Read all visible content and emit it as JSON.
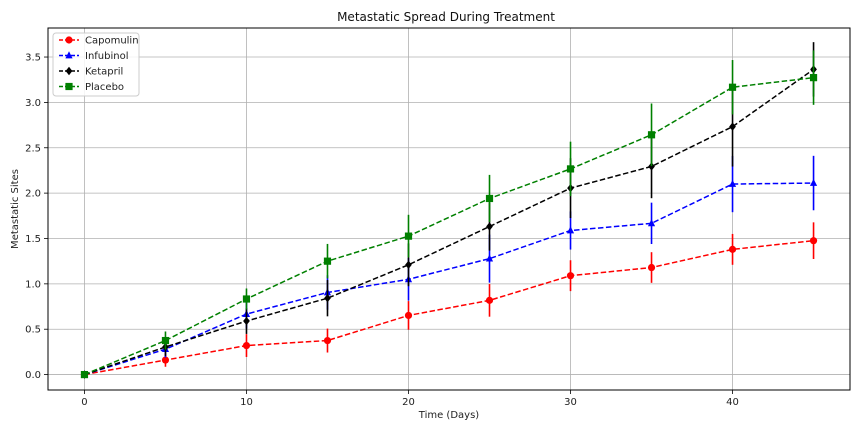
{
  "chart_data": {
    "type": "line",
    "title": "Metastatic Spread During Treatment",
    "xlabel": "Time (Days)",
    "ylabel": "Metastatic Sites",
    "x": [
      0,
      5,
      10,
      15,
      20,
      25,
      30,
      35,
      40,
      45
    ],
    "xlim": [
      -2.25,
      47.25
    ],
    "ylim": [
      -0.17,
      3.82
    ],
    "xticks": [
      0,
      10,
      20,
      30,
      40
    ],
    "yticks": [
      0.0,
      0.5,
      1.0,
      1.5,
      2.0,
      2.5,
      3.0,
      3.5
    ],
    "ytick_labels": [
      "0.0",
      "0.5",
      "1.0",
      "1.5",
      "2.0",
      "2.5",
      "3.0",
      "3.5"
    ],
    "grid": true,
    "legend_position": "top-left",
    "series": [
      {
        "name": "Capomulin",
        "color": "#ff0000",
        "marker": "circle",
        "linestyle": "dashed",
        "values": [
          0.0,
          0.16,
          0.32,
          0.375,
          0.652,
          0.818,
          1.09,
          1.18,
          1.38,
          1.476
        ],
        "errors": [
          0.0,
          0.074,
          0.126,
          0.132,
          0.158,
          0.18,
          0.17,
          0.169,
          0.17,
          0.202
        ]
      },
      {
        "name": "Infubinol",
        "color": "#0000ff",
        "marker": "triangle",
        "linestyle": "dashed",
        "values": [
          0.0,
          0.28,
          0.667,
          0.905,
          1.05,
          1.278,
          1.588,
          1.667,
          2.1,
          2.111
        ],
        "errors": [
          0.0,
          0.092,
          0.16,
          0.19,
          0.235,
          0.265,
          0.21,
          0.228,
          0.31,
          0.3
        ]
      },
      {
        "name": "Ketapril",
        "color": "#000000",
        "marker": "diamond",
        "linestyle": "dashed",
        "values": [
          0.0,
          0.304,
          0.59,
          0.842,
          1.21,
          1.632,
          2.055,
          2.294,
          2.733,
          3.364
        ],
        "errors": [
          0.0,
          0.098,
          0.142,
          0.2,
          0.236,
          0.265,
          0.33,
          0.35,
          0.44,
          0.3
        ]
      },
      {
        "name": "Placebo",
        "color": "#008000",
        "marker": "square",
        "linestyle": "dashed",
        "values": [
          0.0,
          0.375,
          0.833,
          1.25,
          1.526,
          1.941,
          2.267,
          2.643,
          3.167,
          3.273
        ],
        "errors": [
          0.0,
          0.1,
          0.116,
          0.19,
          0.235,
          0.26,
          0.3,
          0.345,
          0.3,
          0.3
        ]
      }
    ]
  }
}
